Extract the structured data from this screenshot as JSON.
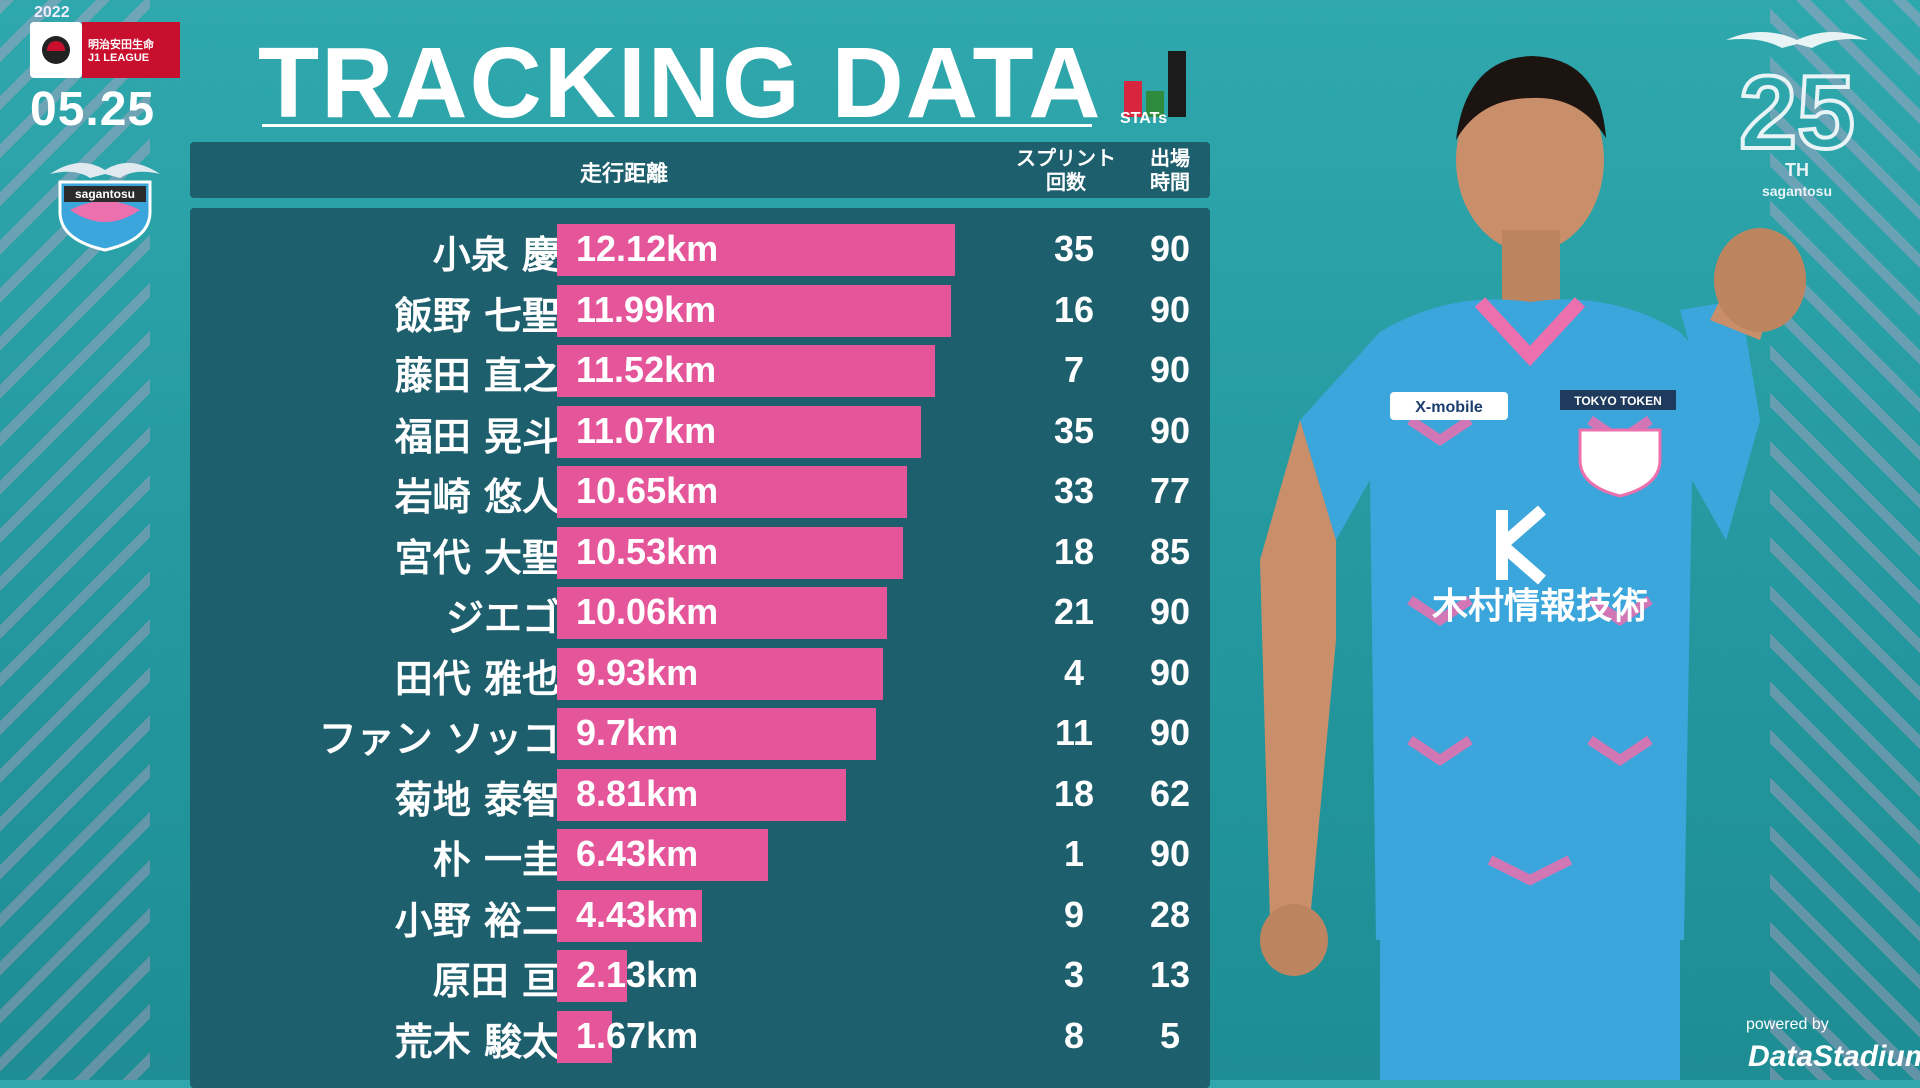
{
  "header": {
    "season": "2022",
    "league_line1": "明治安田生命",
    "league_line2": "J1 LEAGUE",
    "date": "05.25",
    "title": "TRACKING DATA",
    "stats_label": "STATs",
    "club_logo_text": "sagantosu",
    "anniversary_number": "25",
    "anniversary_suffix": "TH",
    "anniversary_club": "sagantosu"
  },
  "table_header": {
    "distance": "走行距離",
    "sprint_line1": "スプリント",
    "sprint_line2": "回数",
    "time_line1": "出場",
    "time_line2": "時間"
  },
  "chart_data": {
    "type": "bar",
    "orientation": "horizontal",
    "unit": "km",
    "xlim": [
      0,
      12.12
    ],
    "categories": [
      "小泉 慶",
      "飯野 七聖",
      "藤田 直之",
      "福田 晃斗",
      "岩崎 悠人",
      "宮代 大聖",
      "ジエゴ",
      "田代 雅也",
      "ファン ソッコ",
      "菊地 泰智",
      "朴 一圭",
      "小野 裕二",
      "原田 亘",
      "荒木 駿太"
    ],
    "values": [
      12.12,
      11.99,
      11.52,
      11.07,
      10.65,
      10.53,
      10.06,
      9.93,
      9.7,
      8.81,
      6.43,
      4.43,
      2.13,
      1.67
    ],
    "value_labels": [
      "12.12km",
      "11.99km",
      "11.52km",
      "11.07km",
      "10.65km",
      "10.53km",
      "10.06km",
      "9.93km",
      "9.7km",
      "8.81km",
      "6.43km",
      "4.43km",
      "2.13km",
      "1.67km"
    ],
    "sprints": [
      "35",
      "16",
      "7",
      "35",
      "33",
      "18",
      "21",
      "4",
      "11",
      "18",
      "1",
      "9",
      "3",
      "8"
    ],
    "minutes": [
      "90",
      "90",
      "90",
      "90",
      "77",
      "85",
      "90",
      "90",
      "90",
      "62",
      "90",
      "28",
      "13",
      "5"
    ],
    "bar_color": "#e5559a"
  },
  "player_jersey": {
    "sponsor_main": "木村情報技術",
    "sponsor_sleeve": "X-mobile",
    "sponsor_back": "TOKYO TOKEN"
  },
  "footer": {
    "powered_by": "powered by",
    "provider": "DataStadium"
  },
  "colors": {
    "background": "#23989e",
    "panel": "#1e5f6d",
    "bar": "#e5559a",
    "jersey": "#3aa6dc"
  }
}
